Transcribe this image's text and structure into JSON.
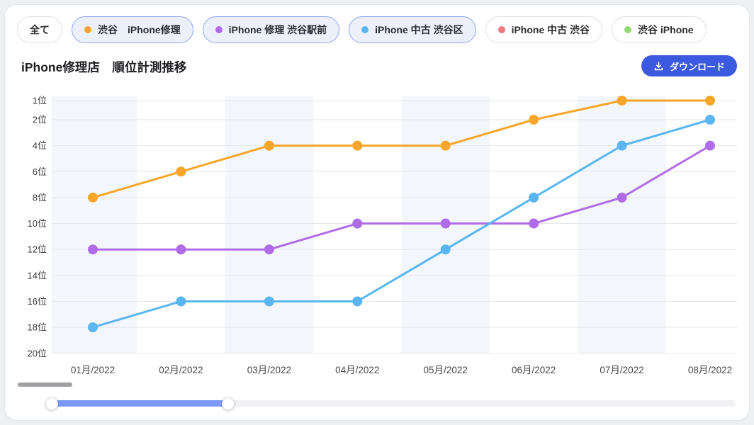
{
  "filters": {
    "all_label": "全て",
    "chips": [
      {
        "label": "渋谷　iPhone修理",
        "color": "#F7A62A",
        "active": true
      },
      {
        "label": "iPhone 修理 渋谷駅前",
        "color": "#B06CE8",
        "active": true
      },
      {
        "label": "iPhone 中古 渋谷区",
        "color": "#5AB6F2",
        "active": true
      },
      {
        "label": "iPhone 中古 渋谷",
        "color": "#F0797E",
        "active": false
      },
      {
        "label": "渋谷 iPhone",
        "color": "#92D876",
        "active": false
      }
    ],
    "active_bg": "#EBF0FB",
    "active_border": "#8FA5EC"
  },
  "header": {
    "title": "iPhone修理店　順位計測推移",
    "download_label": "ダウンロード",
    "download_color": "#3B5ADF"
  },
  "chart_data": {
    "type": "line",
    "title": "iPhone修理店　順位計測推移",
    "x": [
      "01月/2022",
      "02月/2022",
      "03月/2022",
      "04月/2022",
      "05月/2022",
      "06月/2022",
      "07月/2022",
      "08月/2022"
    ],
    "series": [
      {
        "name": "渋谷　iPhone修理",
        "color": "#F7A62A",
        "values": [
          8,
          6,
          4,
          4,
          4,
          2,
          1,
          1
        ]
      },
      {
        "name": "iPhone 修理 渋谷駅前",
        "color": "#B06CE8",
        "values": [
          12,
          12,
          12,
          10,
          10,
          10,
          8,
          4
        ]
      },
      {
        "name": "iPhone 中古 渋谷区",
        "color": "#5AB6F2",
        "values": [
          18,
          16,
          16,
          16,
          12,
          8,
          4,
          2
        ]
      }
    ],
    "xlabel": "",
    "ylabel": "",
    "y_ticks": [
      "1位",
      "2位",
      "4位",
      "6位",
      "8位",
      "10位",
      "12位",
      "14位",
      "16位",
      "18位",
      "20位"
    ],
    "y_tick_values": [
      1,
      2,
      4,
      6,
      8,
      10,
      12,
      14,
      16,
      18,
      20
    ],
    "ylim": [
      1,
      20
    ],
    "y_axis_inverted": true,
    "grid": true,
    "grid_color": "#E6E7E9",
    "band_color": "#F3F6FB",
    "band_month_indices": [
      0,
      2,
      4,
      6
    ],
    "legend_position": "top-chips"
  },
  "range_slider": {
    "fill_color": "#7D99F6",
    "start_percent": 0,
    "end_percent": 25.8
  }
}
